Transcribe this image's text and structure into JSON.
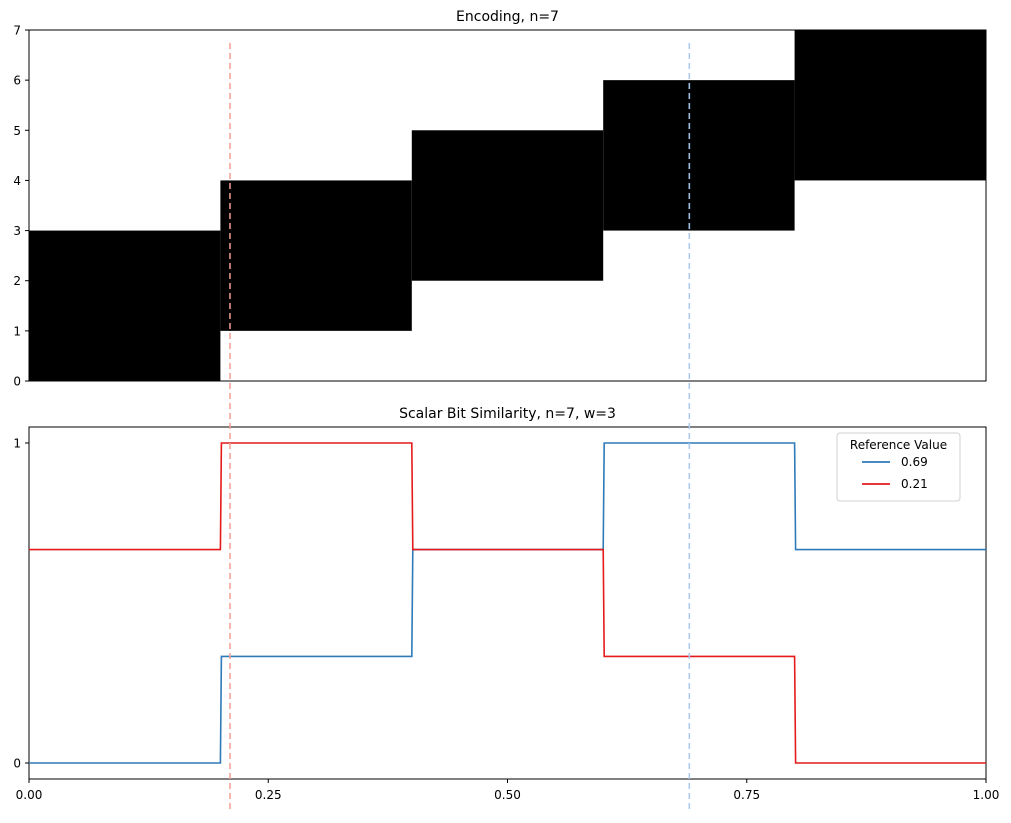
{
  "chart_data": [
    {
      "type": "heatmap",
      "title": "Encoding, n=7",
      "xlabel": "",
      "ylabel": "",
      "xlim": [
        0,
        1
      ],
      "ylim": [
        0,
        7
      ],
      "yticks": [
        0,
        1,
        2,
        3,
        4,
        5,
        6,
        7
      ],
      "show_xticks": false,
      "grid": false,
      "cell_color": "#000000",
      "background_color": "#ffffff",
      "active_blocks": [
        {
          "x": [
            0.0,
            0.2
          ],
          "y": [
            0,
            3
          ]
        },
        {
          "x": [
            0.2,
            0.4
          ],
          "y": [
            1,
            4
          ]
        },
        {
          "x": [
            0.4,
            0.6
          ],
          "y": [
            2,
            5
          ]
        },
        {
          "x": [
            0.6,
            0.8
          ],
          "y": [
            3,
            6
          ]
        },
        {
          "x": [
            0.8,
            1.0
          ],
          "y": [
            4,
            7
          ]
        }
      ],
      "reference_lines": [
        {
          "x": 0.21,
          "color": "#f4a092"
        },
        {
          "x": 0.69,
          "color": "#a9c8f0"
        }
      ]
    },
    {
      "type": "line",
      "title": "Scalar Bit Similarity, n=7, w=3",
      "xlabel": "",
      "ylabel": "",
      "xlim": [
        0,
        1
      ],
      "ylim": [
        -0.05,
        1.05
      ],
      "xticks": [
        "0.00",
        "0.25",
        "0.50",
        "0.75",
        "1.00"
      ],
      "xtick_values": [
        0,
        0.25,
        0.5,
        0.75,
        1.0
      ],
      "yticks": [
        "0",
        "1"
      ],
      "ytick_values": [
        0,
        1
      ],
      "grid": false,
      "legend": {
        "title": "Reference Value",
        "placement": "top-right"
      },
      "series": [
        {
          "name": "0.69",
          "color": "#2f7ab9",
          "x": [
            0.0,
            0.2,
            0.2,
            0.4,
            0.4,
            0.6,
            0.6,
            0.8,
            0.8,
            1.0
          ],
          "y": [
            0,
            0,
            0.333,
            0.333,
            0.667,
            0.667,
            1,
            1,
            0.667,
            0.667
          ]
        },
        {
          "name": "0.21",
          "color": "#e41a1c",
          "x": [
            0.0,
            0.2,
            0.2,
            0.4,
            0.4,
            0.6,
            0.6,
            0.8,
            0.8,
            1.0
          ],
          "y": [
            0.667,
            0.667,
            1,
            1,
            0.667,
            0.667,
            0.333,
            0.333,
            0,
            0
          ]
        }
      ],
      "reference_lines": [
        {
          "x": 0.21,
          "color": "#f4a092"
        },
        {
          "x": 0.69,
          "color": "#a9c8f0"
        }
      ]
    }
  ]
}
